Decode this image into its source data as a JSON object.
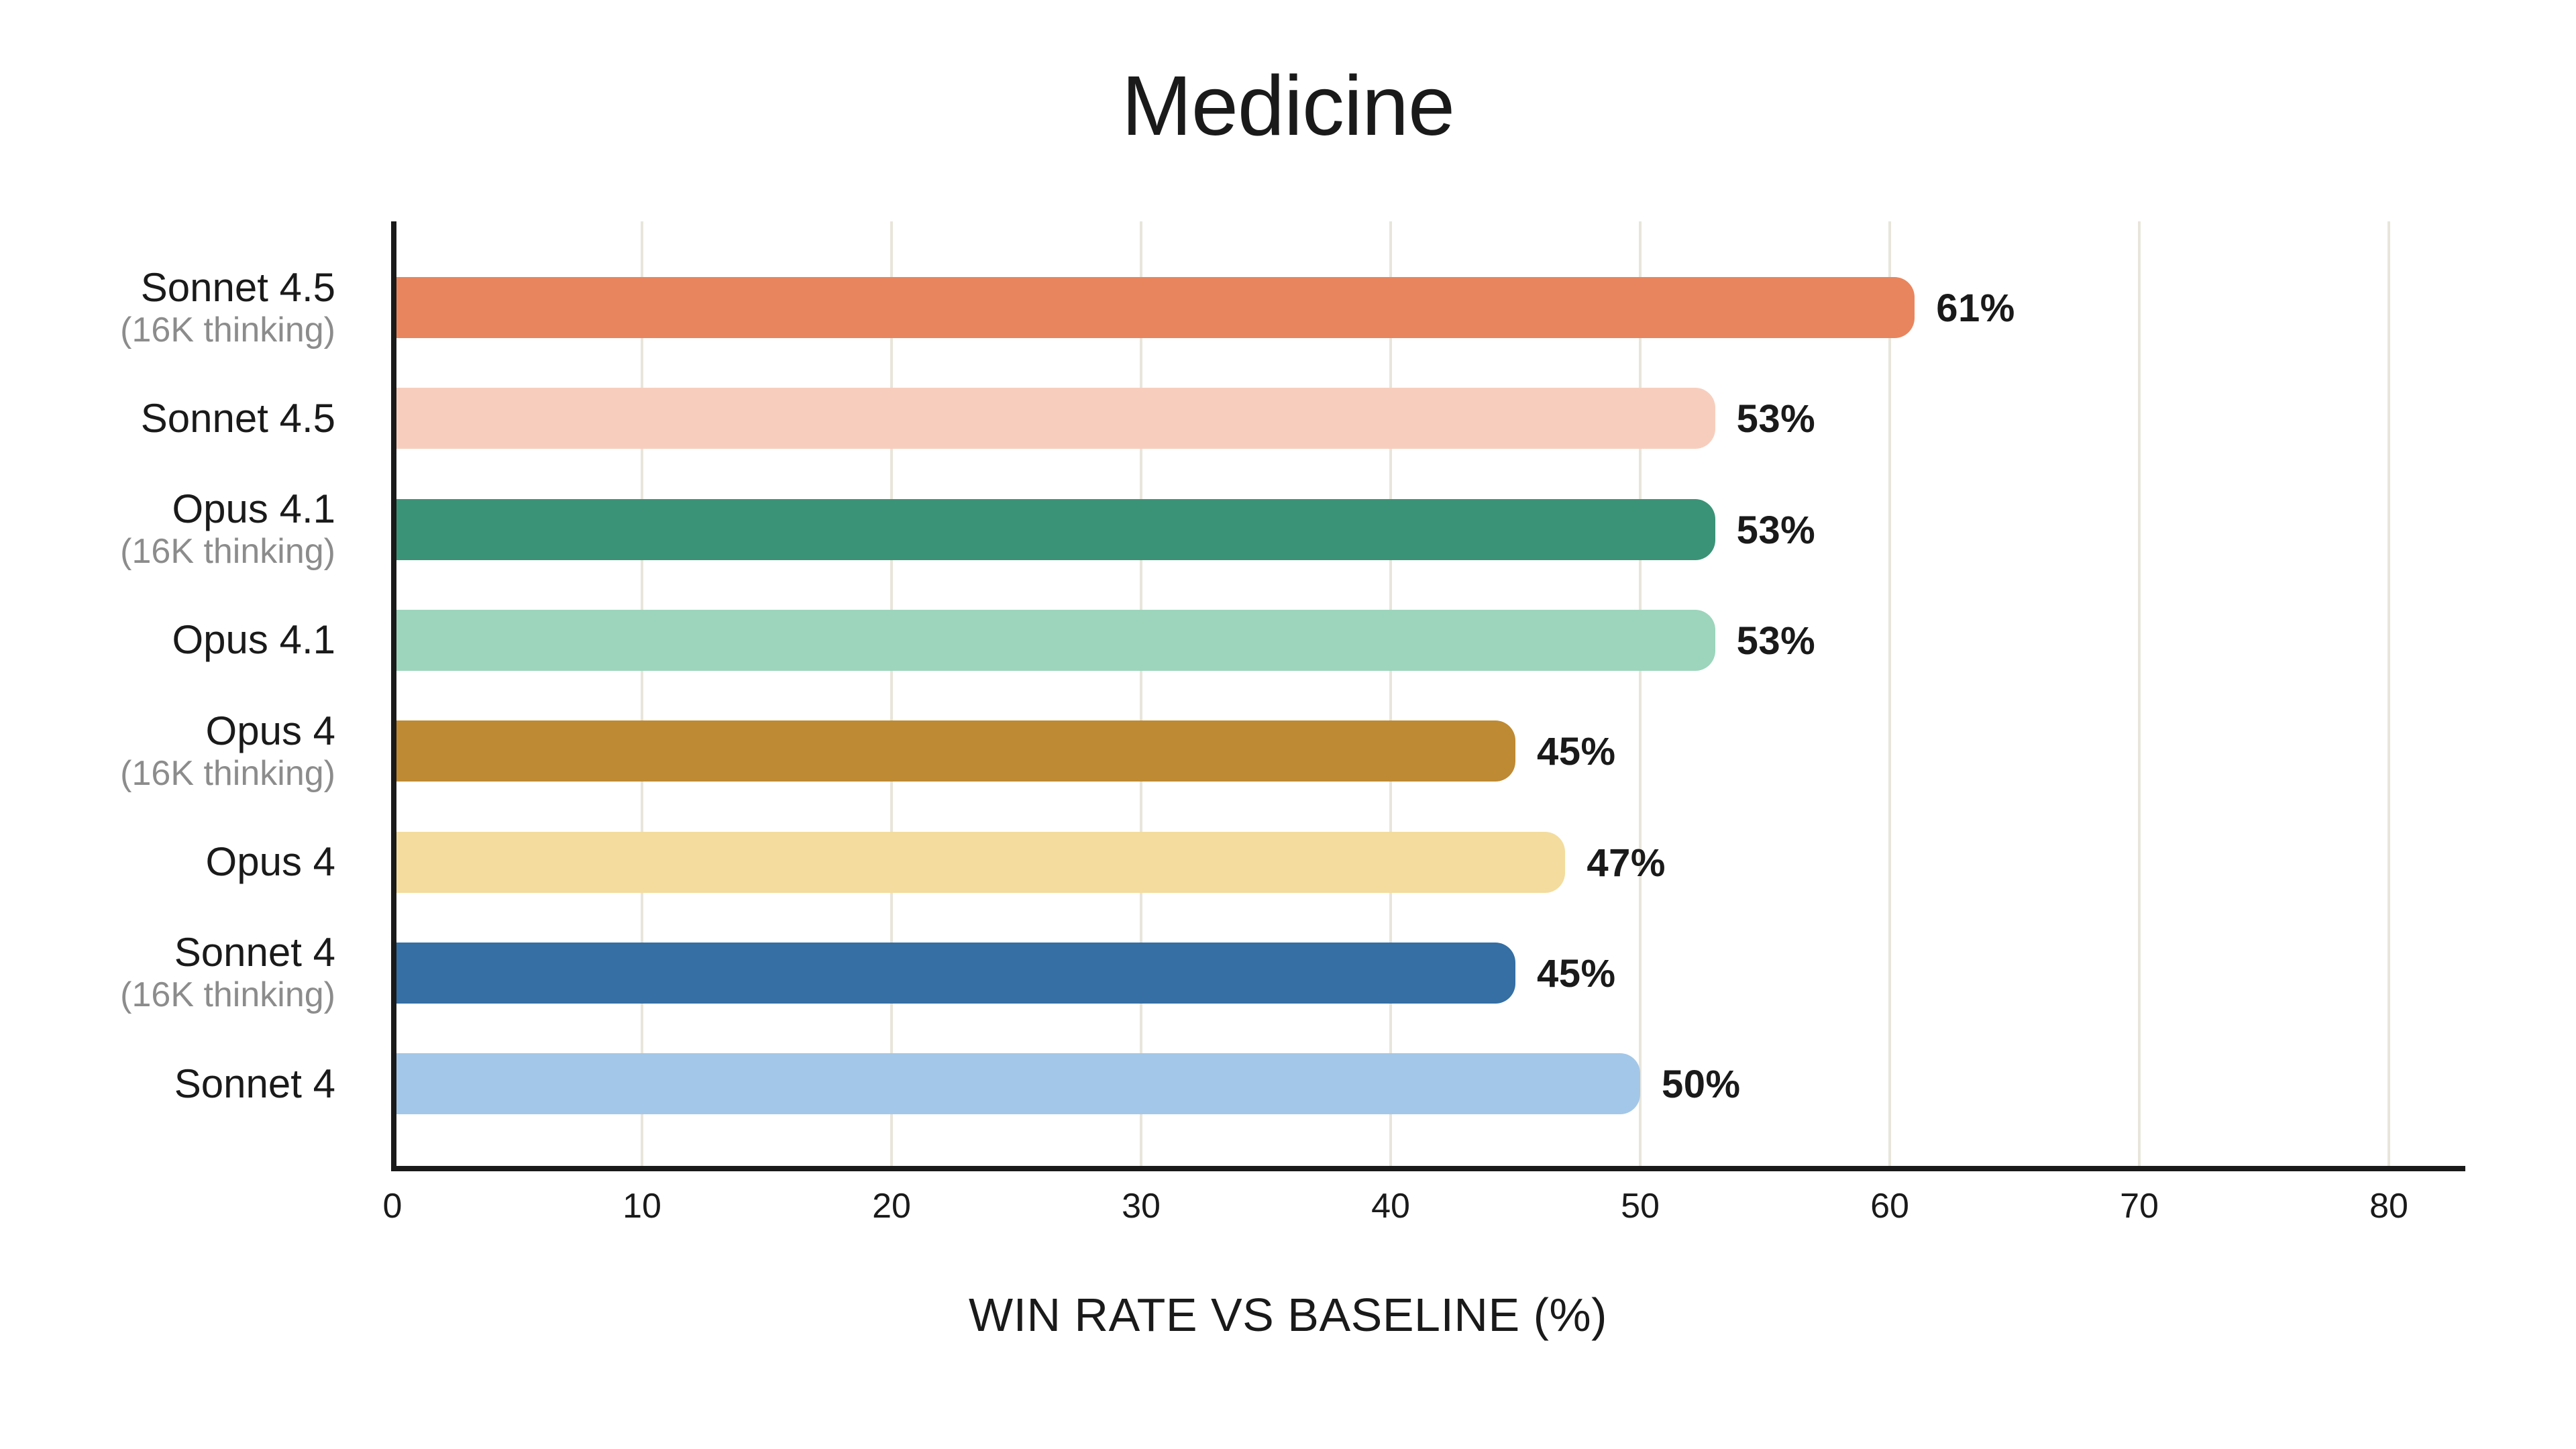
{
  "chart_data": {
    "type": "bar",
    "orientation": "horizontal",
    "title": "Medicine",
    "xlabel": "WIN RATE VS BASELINE (%)",
    "xlim": [
      0,
      83
    ],
    "xticks": [
      0,
      10,
      20,
      30,
      40,
      50,
      60,
      70,
      80
    ],
    "grid": "vertical gridlines at each x tick",
    "legend": "none",
    "categories": [
      {
        "label": "Sonnet 4.5",
        "sublabel": "(16K thinking)"
      },
      {
        "label": "Sonnet 4.5",
        "sublabel": ""
      },
      {
        "label": "Opus 4.1",
        "sublabel": "(16K thinking)"
      },
      {
        "label": "Opus 4.1",
        "sublabel": ""
      },
      {
        "label": "Opus 4",
        "sublabel": "(16K thinking)"
      },
      {
        "label": "Opus 4",
        "sublabel": ""
      },
      {
        "label": "Sonnet 4",
        "sublabel": "(16K thinking)"
      },
      {
        "label": "Sonnet 4",
        "sublabel": ""
      }
    ],
    "values": [
      61,
      53,
      53,
      53,
      45,
      47,
      45,
      50
    ],
    "value_labels": [
      "61%",
      "53%",
      "53%",
      "53%",
      "45%",
      "47%",
      "45%",
      "50%"
    ],
    "bar_colors": [
      "#E9855E",
      "#F7CEBE",
      "#3B9377",
      "#9CD5BC",
      "#BE8A33",
      "#F3DC9D",
      "#356FA3",
      "#A3C7E8"
    ],
    "colors": {
      "background": "#FFFFFF",
      "axis": "#1A1A1A",
      "text": "#1A1A1A",
      "sublabel_text": "#8C8C8C",
      "gridline": "#E8E5DB"
    }
  }
}
